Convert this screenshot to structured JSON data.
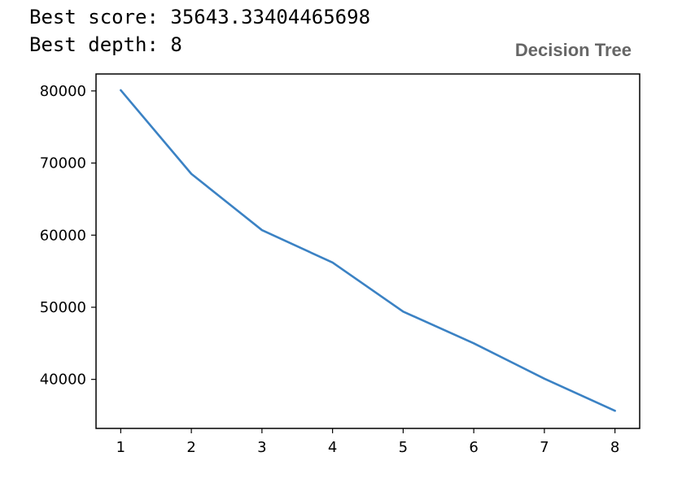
{
  "output": {
    "line1": "Best score: 35643.33404465698",
    "line2": "Best depth: 8"
  },
  "caption": "Decision Tree",
  "colors": {
    "line": "#3b82c4",
    "axes": "#000000",
    "caption": "#666666"
  },
  "chart_data": {
    "type": "line",
    "title": "",
    "xlabel": "",
    "ylabel": "",
    "x": [
      1,
      2,
      3,
      4,
      5,
      6,
      7,
      8
    ],
    "series": [
      {
        "values": [
          80100,
          68500,
          60700,
          56200,
          49400,
          45000,
          40100,
          35643.33
        ]
      }
    ],
    "xlim": [
      0.65,
      8.35
    ],
    "ylim": [
      33200,
      82350
    ],
    "xticks": [
      "1",
      "2",
      "3",
      "4",
      "5",
      "6",
      "7",
      "8"
    ],
    "yticks": [
      40000,
      50000,
      60000,
      70000,
      80000
    ],
    "ytick_labels": [
      "40000",
      "50000",
      "60000",
      "70000",
      "80000"
    ],
    "grid": false,
    "legend": "none"
  }
}
